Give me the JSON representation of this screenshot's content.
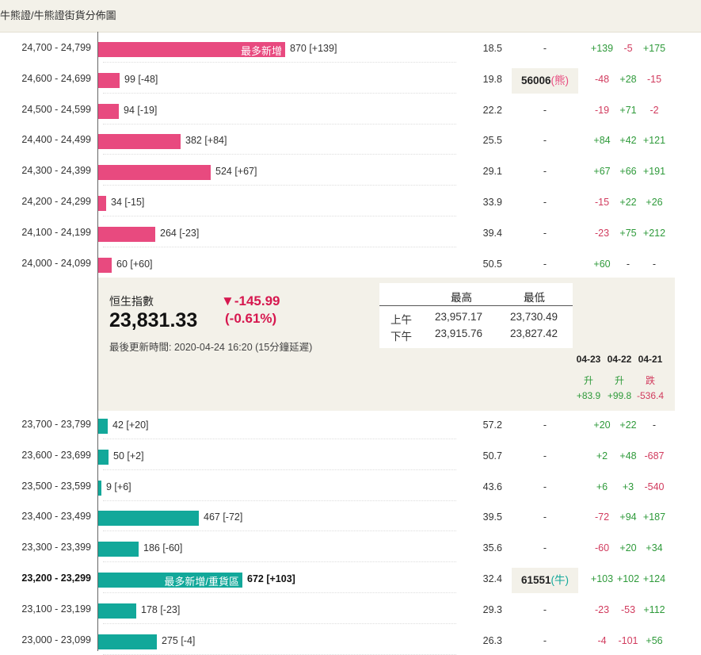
{
  "breadcrumb": {
    "part1": "牛熊證",
    "sep": " / ",
    "part2": "牛熊證街貨分佈圖"
  },
  "bear_rows": [
    {
      "range": "24,700 - 24,799",
      "bar_fraction": 0.368,
      "bar_label": "最多新增",
      "value": "870 [+139]",
      "pct": "18.5",
      "mid": "-",
      "c1": "+139",
      "c2": "-5",
      "c3": "+175"
    },
    {
      "range": "24,600 - 24,699",
      "bar_fraction": 0.042,
      "bar_label": "",
      "value": "99 [-48]",
      "pct": "19.8",
      "mid": "",
      "box_value": "56006",
      "box_tag": "(熊)",
      "c1": "-48",
      "c2": "+28",
      "c3": "-15"
    },
    {
      "range": "24,500 - 24,599",
      "bar_fraction": 0.04,
      "bar_label": "",
      "value": "94 [-19]",
      "pct": "22.2",
      "mid": "-",
      "c1": "-19",
      "c2": "+71",
      "c3": "-2"
    },
    {
      "range": "24,400 - 24,499",
      "bar_fraction": 0.162,
      "bar_label": "",
      "value": "382 [+84]",
      "pct": "25.5",
      "mid": "-",
      "c1": "+84",
      "c2": "+42",
      "c3": "+121"
    },
    {
      "range": "24,300 - 24,399",
      "bar_fraction": 0.222,
      "bar_label": "",
      "value": "524 [+67]",
      "pct": "29.1",
      "mid": "-",
      "c1": "+67",
      "c2": "+66",
      "c3": "+191"
    },
    {
      "range": "24,200 - 24,299",
      "bar_fraction": 0.015,
      "bar_label": "",
      "value": "34 [-15]",
      "pct": "33.9",
      "mid": "-",
      "c1": "-15",
      "c2": "+22",
      "c3": "+26"
    },
    {
      "range": "24,100 - 24,199",
      "bar_fraction": 0.112,
      "bar_label": "",
      "value": "264 [-23]",
      "pct": "39.4",
      "mid": "-",
      "c1": "-23",
      "c2": "+75",
      "c3": "+212"
    },
    {
      "range": "24,000 - 24,099",
      "bar_fraction": 0.026,
      "bar_label": "",
      "value": "60 [+60]",
      "pct": "50.5",
      "mid": "-",
      "c1": "+60",
      "c2": "-",
      "c3": "-"
    }
  ],
  "index": {
    "name": "恒生指數",
    "value": "23,831.33",
    "change": "▼-145.99",
    "change_pct": "(-0.61%)",
    "updated": "最後更新時間: 2020-04-24 16:20 (15分鐘延遲)",
    "high_label": "最高",
    "low_label": "最低",
    "am_label": "上午",
    "pm_label": "下午",
    "am_high": "23,957.17",
    "am_low": "23,730.49",
    "pm_high": "23,915.76",
    "pm_low": "23,827.42",
    "trend": [
      {
        "date": "04-23",
        "dir": "升",
        "change": "+83.9",
        "sign": "pos"
      },
      {
        "date": "04-22",
        "dir": "升",
        "change": "+99.8",
        "sign": "pos"
      },
      {
        "date": "04-21",
        "dir": "跌",
        "change": "-536.4",
        "sign": "neg"
      }
    ]
  },
  "bull_rows": [
    {
      "range": "23,700 - 23,799",
      "bar_fraction": 0.018,
      "bar_label": "",
      "value": "42 [+20]",
      "pct": "57.2",
      "mid": "-",
      "c1": "+20",
      "c2": "+22",
      "c3": "-"
    },
    {
      "range": "23,600 - 23,699",
      "bar_fraction": 0.021,
      "bar_label": "",
      "value": "50 [+2]",
      "pct": "50.7",
      "mid": "-",
      "c1": "+2",
      "c2": "+48",
      "c3": "-687"
    },
    {
      "range": "23,500 - 23,599",
      "bar_fraction": 0.004,
      "bar_label": "",
      "value": "9 [+6]",
      "pct": "43.6",
      "mid": "-",
      "c1": "+6",
      "c2": "+3",
      "c3": "-540"
    },
    {
      "range": "23,400 - 23,499",
      "bar_fraction": 0.198,
      "bar_label": "",
      "value": "467 [-72]",
      "pct": "39.5",
      "mid": "-",
      "c1": "-72",
      "c2": "+94",
      "c3": "+187"
    },
    {
      "range": "23,300 - 23,399",
      "bar_fraction": 0.079,
      "bar_label": "",
      "value": "186 [-60]",
      "pct": "35.6",
      "mid": "-",
      "c1": "-60",
      "c2": "+20",
      "c3": "+34"
    },
    {
      "range": "23,200 - 23,299",
      "bar_fraction": 0.284,
      "bar_label": "最多新增/重貨區",
      "value": "672 [+103]",
      "pct": "32.4",
      "mid": "",
      "box_value": "61551",
      "box_tag": "(牛)",
      "c1": "+103",
      "c2": "+102",
      "c3": "+124",
      "bold": true
    },
    {
      "range": "23,100 - 23,199",
      "bar_fraction": 0.075,
      "bar_label": "",
      "value": "178 [-23]",
      "pct": "29.3",
      "mid": "-",
      "c1": "-23",
      "c2": "-53",
      "c3": "+112"
    },
    {
      "range": "23,000 - 23,099",
      "bar_fraction": 0.116,
      "bar_label": "",
      "value": "275 [-4]",
      "pct": "26.3",
      "mid": "-",
      "c1": "-4",
      "c2": "-101",
      "c3": "+56"
    }
  ],
  "colors": {
    "bear": "#e84a7f",
    "bull": "#12a89a",
    "up": "#2e9a3a",
    "down": "#d13a5d",
    "panel": "#f3f1e9"
  }
}
